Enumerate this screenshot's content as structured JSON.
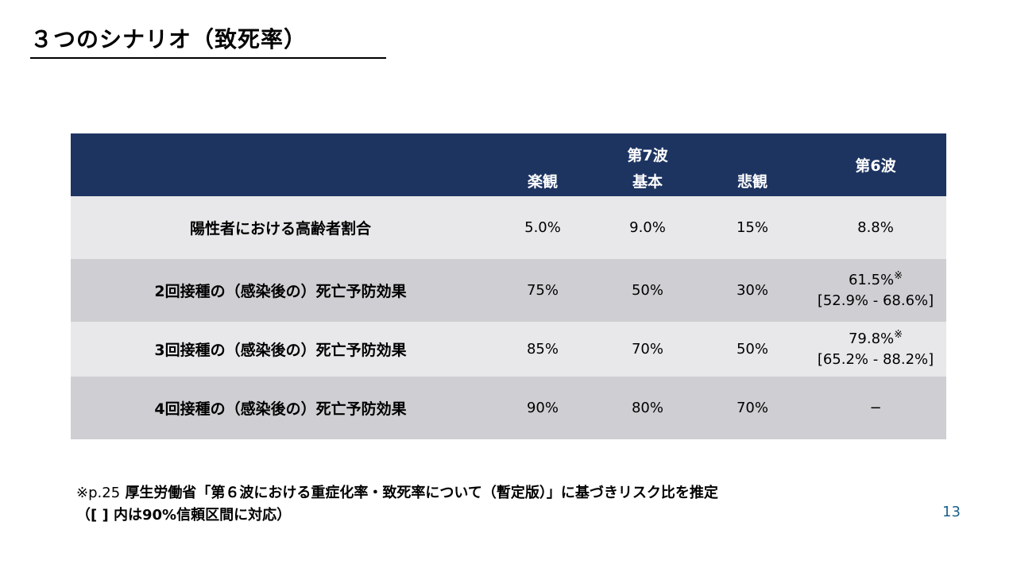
{
  "title": "３つのシナリオ（致死率）",
  "table": {
    "group_header": "第7波",
    "columns": [
      "楽観",
      "基本",
      "悲観"
    ],
    "wave6_header": "第6波",
    "rows": [
      {
        "label": "陽性者における高齢者割合",
        "optimistic": "5.0%",
        "base": "9.0%",
        "pessimistic": "15%",
        "wave6": "8.8%",
        "wave6_mark": "",
        "wave6_ci": ""
      },
      {
        "label": "2回接種の（感染後の）死亡予防効果",
        "optimistic": "75%",
        "base": "50%",
        "pessimistic": "30%",
        "wave6": "61.5%",
        "wave6_mark": "※",
        "wave6_ci": "[52.9% - 68.6%]"
      },
      {
        "label": "3回接種の（感染後の）死亡予防効果",
        "optimistic": "85%",
        "base": "70%",
        "pessimistic": "50%",
        "wave6": "79.8%",
        "wave6_mark": "※",
        "wave6_ci": "[65.2% - 88.2%]"
      },
      {
        "label": "4回接種の（感染後の）死亡予防効果",
        "optimistic": "90%",
        "base": "80%",
        "pessimistic": "70%",
        "wave6": "−",
        "wave6_mark": "",
        "wave6_ci": ""
      }
    ]
  },
  "footnote": {
    "mark": "※",
    "ref": "p.25",
    "line1": "厚生労働省「第６波における重症化率・致死率について（暫定版）」に基づきリスク比を推定",
    "line2": "（[ ] 内は90%信頼区間に対応）"
  },
  "page_number": "13",
  "colors": {
    "header_bg": "#1d3461",
    "row_light": "#e8e8ea",
    "row_dark": "#cfcfd3",
    "page_number": "#1d5f8a"
  }
}
